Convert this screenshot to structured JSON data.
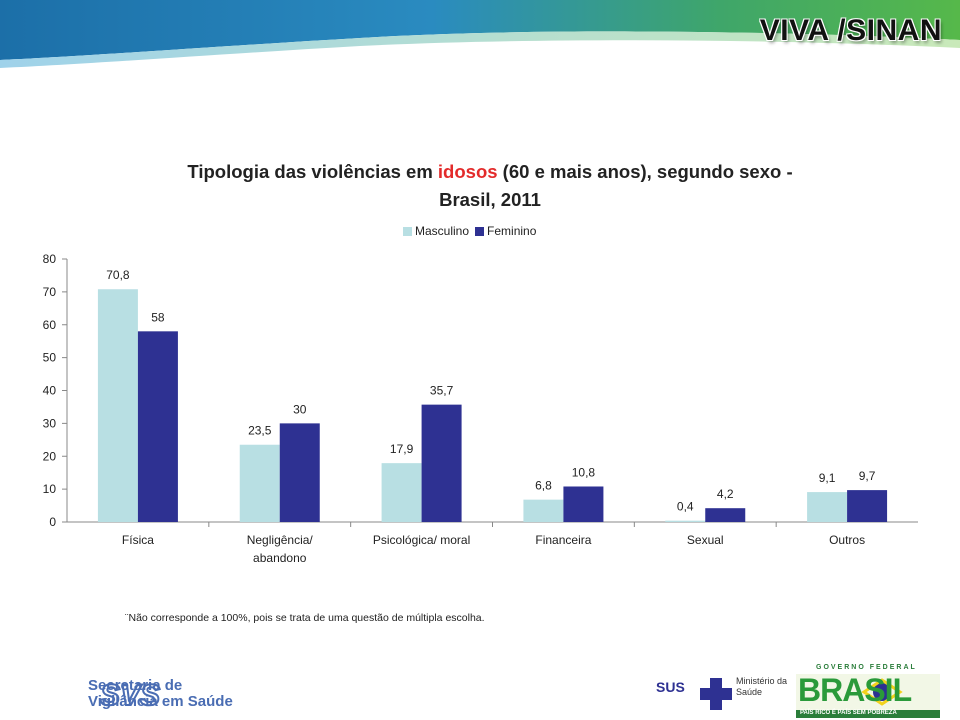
{
  "header": {
    "brand_title": "VIVA /SINAN"
  },
  "chart_data": {
    "type": "bar",
    "title_parts": [
      "Tipologia das violências em ",
      "idosos",
      " (60 e mais anos), segundo sexo -",
      "Brasil, 2011"
    ],
    "categories": [
      "Física",
      "Negligência/ abandono",
      "Psicológica/ moral",
      "Financeira",
      "Sexual",
      "Outros"
    ],
    "series": [
      {
        "name": "Masculino",
        "values": [
          70.8,
          23.5,
          17.9,
          6.8,
          0.4,
          9.1
        ],
        "labels": [
          "70,8",
          "23,5",
          "17,9",
          "6,8",
          "0,4",
          "9,1"
        ],
        "color": "#b8dfe3"
      },
      {
        "name": "Feminino",
        "values": [
          58,
          30,
          35.7,
          10.8,
          4.2,
          9.7
        ],
        "labels": [
          "58",
          "30",
          "35,7",
          "10,8",
          "4,2",
          "9,7"
        ],
        "color": "#2e3192"
      }
    ],
    "ylim": [
      0,
      80
    ],
    "yticks": [
      0,
      10,
      20,
      30,
      40,
      50,
      60,
      70,
      80
    ],
    "legend_position": "top",
    "grid": false
  },
  "footnote": "¨Não corresponde a 100%, pois se trata de uma questão de múltipla escolha.",
  "footer": {
    "svs_line1": "Secretaria de",
    "svs_line2": "Vigilância em Saúde",
    "ministerio_line1": "Ministério da",
    "ministerio_line2": "Saúde",
    "gov_federal": "GOVERNO FEDERAL",
    "brasil": "BRASIL",
    "slogan": "PAÍS RICO É PAÍS SEM POBREZA",
    "sus": "SUS"
  }
}
